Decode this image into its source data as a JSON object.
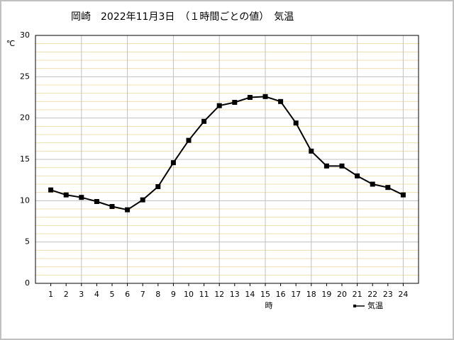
{
  "chart_data": {
    "type": "line",
    "title": "岡崎　2022年11月3日　（１時間ごとの値）　気温",
    "y_label": "℃",
    "x_label": "時",
    "x": [
      1,
      2,
      3,
      4,
      5,
      6,
      7,
      8,
      9,
      10,
      11,
      12,
      13,
      14,
      15,
      16,
      17,
      18,
      19,
      20,
      21,
      22,
      23,
      24
    ],
    "series": [
      {
        "name": "気温",
        "color": "#000000",
        "values": [
          11.3,
          10.7,
          10.4,
          9.9,
          9.3,
          8.9,
          10.1,
          11.7,
          14.6,
          17.3,
          19.6,
          21.5,
          21.9,
          22.5,
          22.6,
          22.0,
          19.4,
          16.0,
          14.2,
          14.2,
          13.0,
          12.0,
          11.6,
          10.7
        ]
      }
    ],
    "xlim": [
      0,
      25
    ],
    "xticks": [
      1,
      2,
      3,
      4,
      5,
      6,
      7,
      8,
      9,
      10,
      11,
      12,
      13,
      14,
      15,
      16,
      17,
      18,
      19,
      20,
      21,
      22,
      23,
      24
    ],
    "ylim": [
      0,
      30
    ],
    "yticks": [
      0,
      5,
      10,
      15,
      20,
      25,
      30
    ],
    "grid": true
  }
}
